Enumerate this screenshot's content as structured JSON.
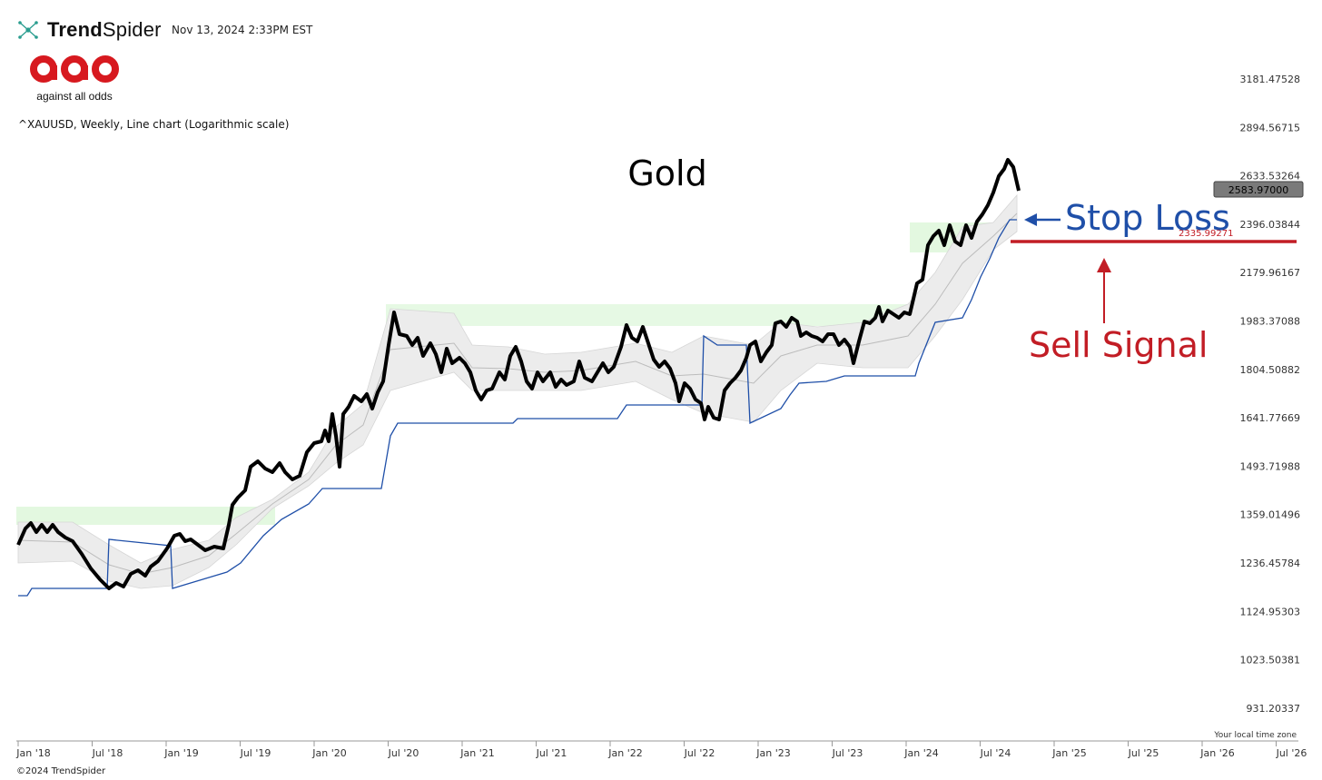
{
  "header": {
    "brand_bold": "Trend",
    "brand_light": "Spider",
    "timestamp": "Nov 13, 2024 2:33PM EST",
    "logo_caption": "against all odds",
    "subtitle": "^XAUUSD, Weekly, Line chart (Logarithmic scale)"
  },
  "footer": {
    "copyright": "©2024 TrendSpider",
    "timezone_note": "Your local time zone"
  },
  "annotations": {
    "title": "Gold",
    "stop_loss": "Stop Loss",
    "sell_signal": "Sell Signal",
    "sell_level_label": "2335.99271"
  },
  "colors": {
    "price_line": "#000000",
    "stop_line": "#1f4fa8",
    "sell_red": "#c21d25",
    "channel_fill": "#e6e6e6",
    "breakout_zone": "#d9f5d5"
  },
  "chart_data": {
    "type": "line",
    "y_scale": "log",
    "ylim": [
      900,
      3330
    ],
    "last_price": 2583.97,
    "last_price_label": "2583.97000",
    "stop_level": 2335.99271,
    "y_ticks": [
      "3181.47528",
      "2894.56715",
      "2633.53264",
      "2396.03844",
      "2179.96167",
      "1983.37088",
      "1804.50882",
      "1641.77669",
      "1493.71988",
      "1359.01496",
      "1236.45784",
      "1124.95303",
      "1023.50381",
      "931.20337"
    ],
    "x_ticks": [
      "Jan '18",
      "Jul '18",
      "Jan '19",
      "Jul '19",
      "Jan '20",
      "Jul '20",
      "Jan '21",
      "Jul '21",
      "Jan '22",
      "Jul '22",
      "Jan '23",
      "Jul '23",
      "Jan '24",
      "Jul '24",
      "Jan '25",
      "Jul '25",
      "Jan '26",
      "Jul '26"
    ],
    "series": [
      {
        "x": [
          "2018-01",
          "2018-02",
          "2018-04",
          "2018-06",
          "2018-08",
          "2018-09",
          "2018-10",
          "2018-11",
          "2018-12",
          "2019-01",
          "2019-02",
          "2019-03",
          "2019-04",
          "2019-05",
          "2019-06",
          "2019-07",
          "2019-08",
          "2019-09",
          "2019-10",
          "2019-11",
          "2019-12",
          "2020-01",
          "2020-02",
          "2020-03a",
          "2020-03b",
          "2020-04",
          "2020-05",
          "2020-06",
          "2020-07",
          "2020-08",
          "2020-09",
          "2020-10",
          "2020-11",
          "2020-12",
          "2021-01",
          "2021-02",
          "2021-03",
          "2021-04",
          "2021-05",
          "2021-06",
          "2021-07",
          "2021-08",
          "2021-09",
          "2021-10",
          "2021-11",
          "2021-12",
          "2022-01",
          "2022-02",
          "2022-03",
          "2022-04",
          "2022-05",
          "2022-06",
          "2022-07",
          "2022-08",
          "2022-09",
          "2022-10",
          "2022-11",
          "2022-12",
          "2023-01",
          "2023-02",
          "2023-03",
          "2023-04",
          "2023-05",
          "2023-06",
          "2023-07",
          "2023-08",
          "2023-09",
          "2023-10",
          "2023-11",
          "2023-12",
          "2024-01",
          "2024-02",
          "2024-03",
          "2024-04",
          "2024-05",
          "2024-06",
          "2024-07",
          "2024-08",
          "2024-09",
          "2024-10",
          "2024-11"
        ],
        "y": [
          1290,
          1340,
          1330,
          1290,
          1200,
          1190,
          1210,
          1230,
          1250,
          1290,
          1320,
          1305,
          1280,
          1285,
          1400,
          1420,
          1510,
          1490,
          1500,
          1465,
          1480,
          1560,
          1610,
          1510,
          1640,
          1700,
          1725,
          1760,
          1890,
          1990,
          1900,
          1890,
          1860,
          1860,
          1850,
          1760,
          1720,
          1780,
          1890,
          1770,
          1810,
          1790,
          1750,
          1760,
          1860,
          1790,
          1810,
          1900,
          1960,
          1940,
          1850,
          1830,
          1720,
          1780,
          1660,
          1640,
          1770,
          1800,
          1920,
          1860,
          1980,
          2000,
          1960,
          1920,
          1950,
          1910,
          1880,
          1980,
          2000,
          2060,
          2030,
          2020,
          2180,
          2390,
          2340,
          2330,
          2420,
          2500,
          2640,
          2740,
          2584
        ]
      }
    ]
  }
}
